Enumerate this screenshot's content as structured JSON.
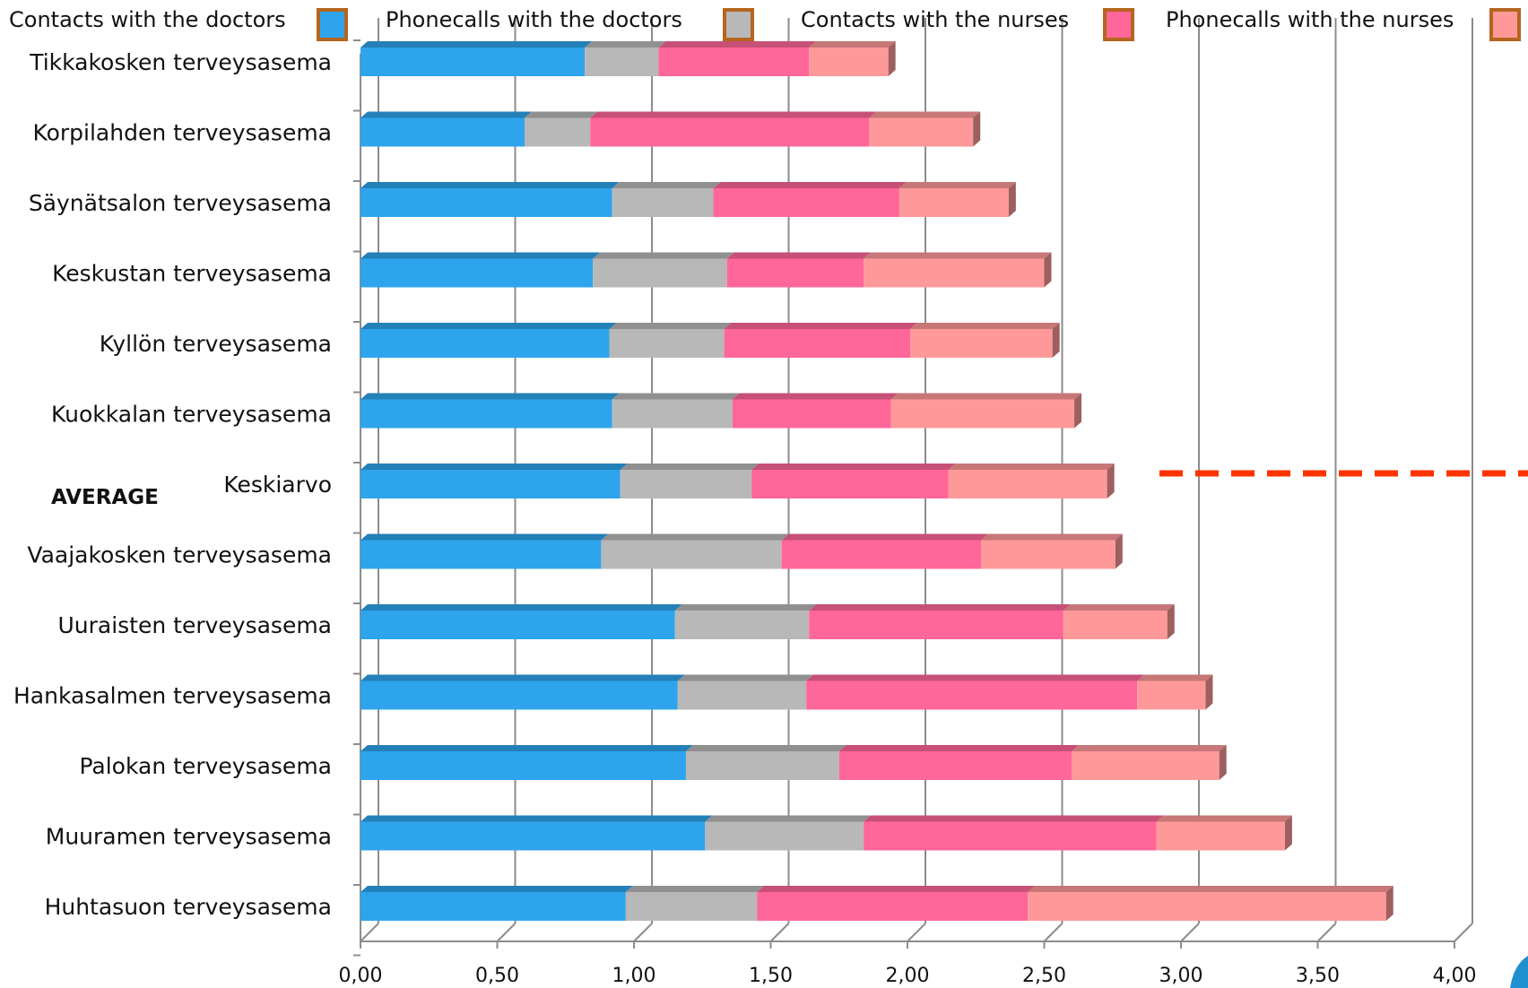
{
  "chart_data": {
    "type": "bar",
    "orientation": "horizontal",
    "stacked": true,
    "title": "",
    "xlabel": "",
    "ylabel": "",
    "xlim": [
      0,
      4
    ],
    "xticks": [
      "0,00",
      "0,50",
      "1,00",
      "1,50",
      "2,00",
      "2,50",
      "3,00",
      "3,50",
      "4,00"
    ],
    "grid": true,
    "legend_position": "top",
    "categories": [
      "Tikkakosken terveysasema",
      "Korpilahden terveysasema",
      "Säynätsalon terveysasema",
      "Keskustan terveysasema",
      "Kyllön terveysasema",
      "Kuokkalan terveysasema",
      "Keskiarvo",
      "Vaajakosken terveysasema",
      "Uuraisten terveysasema",
      "Hankasalmen terveysasema",
      "Palokan terveysasema",
      "Muuramen terveysasema",
      "Huhtasuon terveysasema"
    ],
    "series": [
      {
        "name": "Contacts with the doctors",
        "color": "#2ea4ec",
        "values": [
          0.82,
          0.6,
          0.92,
          0.85,
          0.91,
          0.92,
          0.95,
          0.88,
          1.15,
          1.16,
          1.19,
          1.26,
          0.97
        ]
      },
      {
        "name": "Phonecalls with the doctors",
        "color": "#b8b8b8",
        "values": [
          0.27,
          0.24,
          0.37,
          0.49,
          0.42,
          0.44,
          0.48,
          0.66,
          0.49,
          0.47,
          0.56,
          0.58,
          0.48
        ]
      },
      {
        "name": "Contacts with the nurses",
        "color": "#ff6699",
        "values": [
          0.55,
          1.02,
          0.68,
          0.5,
          0.68,
          0.58,
          0.72,
          0.73,
          0.93,
          1.21,
          0.85,
          1.07,
          0.99
        ]
      },
      {
        "name": "Phonecalls with the nurses",
        "color": "#ff9999",
        "values": [
          0.29,
          0.38,
          0.4,
          0.66,
          0.52,
          0.67,
          0.58,
          0.49,
          0.38,
          0.25,
          0.54,
          0.47,
          1.31
        ]
      }
    ],
    "annotations": [
      {
        "text": "AVERAGE",
        "target_category": "Keskiarvo"
      }
    ],
    "reference_line": {
      "style": "dashed",
      "color": "#ff3300",
      "category": "Keskiarvo"
    }
  }
}
